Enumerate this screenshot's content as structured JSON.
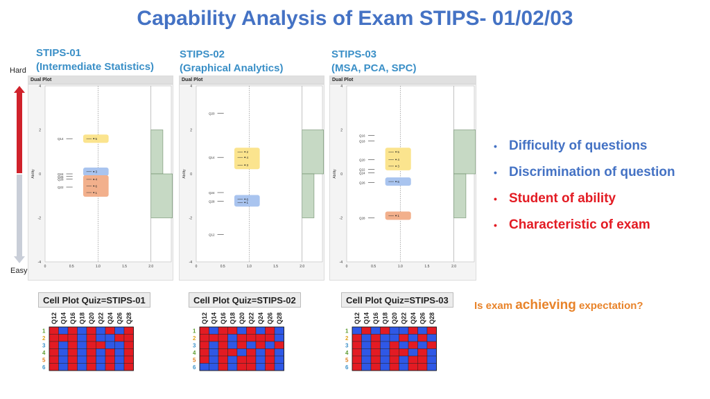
{
  "title": "Capability Analysis of Exam STIPS- 01/02/03",
  "side": {
    "hard": "Hard",
    "easy": "Easy"
  },
  "plots": [
    {
      "head1": "STIPS-01",
      "head2": "(Intermediate Statistics)",
      "panel": "Dual Plot",
      "yticks": [
        "4",
        "2",
        "0",
        "-2",
        "-4"
      ],
      "xticks": [
        "0",
        "0.5",
        "1.0",
        "1.5",
        "2.0"
      ],
      "ylabel": "Ability",
      "questions": [
        {
          "label": "Q14",
          "level": 1.6
        },
        {
          "label": "Q24",
          "level": 0.0
        },
        {
          "label": "Q26",
          "level": -0.12
        },
        {
          "label": "Q28",
          "level": -0.24
        },
        {
          "label": "Q22",
          "level": -0.6
        }
      ],
      "students": [
        {
          "label": "5",
          "level": 1.6,
          "group": "yellow"
        },
        {
          "label": "3",
          "level": 0.1,
          "group": "blue"
        },
        {
          "label": "4",
          "level": -0.25,
          "group": "orange"
        },
        {
          "label": "6",
          "level": -0.55,
          "group": "orange"
        },
        {
          "label": "1",
          "level": -0.85,
          "group": "orange"
        }
      ],
      "hist": [
        {
          "from": 0.0,
          "to": 2.0,
          "width": 0.25
        },
        {
          "from": -2.0,
          "to": 0.0,
          "width": 0.45
        }
      ]
    },
    {
      "head1": "STIPS-02",
      "head2": "(Graphical Analytics)",
      "panel": "Dual Plot",
      "yticks": [
        "4",
        "2",
        "0",
        "-2",
        "-4"
      ],
      "xticks": [
        "0",
        "0.5",
        "1.0",
        "1.5",
        "2.0"
      ],
      "ylabel": "Ability",
      "questions": [
        {
          "label": "Q20",
          "level": 2.75
        },
        {
          "label": "Q14",
          "level": 0.75
        },
        {
          "label": "Q24",
          "level": -0.85
        },
        {
          "label": "Q28",
          "level": -1.25
        },
        {
          "label": "Q12",
          "level": -2.75
        }
      ],
      "students": [
        {
          "label": "2",
          "level": 1.0,
          "group": "yellow"
        },
        {
          "label": "4",
          "level": 0.75,
          "group": "yellow"
        },
        {
          "label": "3",
          "level": 0.4,
          "group": "yellow"
        },
        {
          "label": "6",
          "level": -1.15,
          "group": "blue"
        },
        {
          "label": "1",
          "level": -1.3,
          "group": "blue"
        }
      ],
      "hist": [
        {
          "from": 0.0,
          "to": 2.0,
          "width": 0.45
        },
        {
          "from": -2.0,
          "to": 0.0,
          "width": 0.25
        }
      ]
    },
    {
      "head1": "STIPS-03",
      "head2": "(MSA, PCA, SPC)",
      "panel": "Dual Plot",
      "yticks": [
        "4",
        "2",
        "0",
        "-2",
        "-4"
      ],
      "xticks": [
        "0",
        "0.5",
        "1.0",
        "1.5",
        "2.0"
      ],
      "ylabel": "Ability",
      "questions": [
        {
          "label": "Q16",
          "level": 1.75
        },
        {
          "label": "Q18",
          "level": 1.5
        },
        {
          "label": "Q20",
          "level": 0.65
        },
        {
          "label": "Q22",
          "level": 0.2
        },
        {
          "label": "Q24",
          "level": 0.05
        },
        {
          "label": "Q26",
          "level": -0.4
        },
        {
          "label": "Q28",
          "level": -2.0
        }
      ],
      "students": [
        {
          "label": "5",
          "level": 1.0,
          "group": "yellow"
        },
        {
          "label": "4",
          "level": 0.65,
          "group": "yellow"
        },
        {
          "label": "3",
          "level": 0.35,
          "group": "yellow"
        },
        {
          "label": "6",
          "level": -0.35,
          "group": "blue"
        },
        {
          "label": "1",
          "level": -1.9,
          "group": "orange"
        }
      ],
      "hist": [
        {
          "from": 0.0,
          "to": 2.0,
          "width": 0.45
        },
        {
          "from": -2.0,
          "to": 0.0,
          "width": 0.25
        }
      ]
    }
  ],
  "bullets": [
    {
      "text": "Difficulty of questions",
      "color": "#4472c4"
    },
    {
      "text": "Discrimination of question",
      "color": "#4472c4"
    },
    {
      "text": "Student of ability",
      "color": "#e31b23"
    },
    {
      "text": "Characteristic of exam",
      "color": "#e31b23"
    }
  ],
  "question": {
    "pre": "Is exam ",
    "big": "achieving",
    "post": " expectation?"
  },
  "cellplots": [
    {
      "title": "Cell Plot Quiz=STIPS-01",
      "columns": [
        "Q12",
        "Q14",
        "Q16",
        "Q18",
        "Q20",
        "Q22",
        "Q24",
        "Q26",
        "Q28"
      ],
      "rows": [
        "1",
        "2",
        "3",
        "4",
        "5",
        "6"
      ],
      "cells": [
        [
          1,
          0,
          1,
          0,
          1,
          0,
          1,
          0,
          1
        ],
        [
          1,
          1,
          1,
          0,
          1,
          0,
          0,
          1,
          1
        ],
        [
          1,
          0,
          1,
          0,
          1,
          1,
          0,
          0,
          1
        ],
        [
          1,
          0,
          1,
          0,
          1,
          0,
          1,
          0,
          1
        ],
        [
          1,
          0,
          1,
          0,
          1,
          0,
          1,
          0,
          1
        ],
        [
          1,
          0,
          1,
          0,
          1,
          0,
          1,
          0,
          1
        ]
      ]
    },
    {
      "title": "Cell Plot Quiz=STIPS-02",
      "columns": [
        "Q12",
        "Q14",
        "Q16",
        "Q18",
        "Q20",
        "Q22",
        "Q24",
        "Q26",
        "Q28"
      ],
      "rows": [
        "1",
        "2",
        "3",
        "4",
        "5",
        "6"
      ],
      "cells": [
        [
          1,
          0,
          1,
          1,
          0,
          1,
          0,
          1,
          0
        ],
        [
          1,
          1,
          1,
          0,
          1,
          1,
          1,
          1,
          0
        ],
        [
          1,
          0,
          1,
          0,
          1,
          0,
          1,
          0,
          1
        ],
        [
          1,
          0,
          1,
          1,
          0,
          1,
          0,
          1,
          0
        ],
        [
          1,
          0,
          1,
          0,
          1,
          1,
          0,
          1,
          0
        ],
        [
          0,
          0,
          1,
          0,
          1,
          1,
          0,
          1,
          0
        ]
      ]
    },
    {
      "title": "Cell Plot Quiz=STIPS-03",
      "columns": [
        "Q12",
        "Q14",
        "Q16",
        "Q18",
        "Q20",
        "Q22",
        "Q24",
        "Q26",
        "Q28"
      ],
      "rows": [
        "1",
        "2",
        "3",
        "4",
        "5",
        "6"
      ],
      "cells": [
        [
          0,
          1,
          0,
          1,
          0,
          0,
          1,
          0,
          1
        ],
        [
          1,
          0,
          1,
          0,
          0,
          1,
          0,
          1,
          0
        ],
        [
          1,
          0,
          1,
          0,
          1,
          0,
          1,
          0,
          1
        ],
        [
          1,
          0,
          1,
          0,
          1,
          1,
          0,
          1,
          0
        ],
        [
          1,
          0,
          1,
          0,
          1,
          0,
          1,
          1,
          0
        ],
        [
          1,
          0,
          1,
          0,
          1,
          0,
          1,
          1,
          0
        ]
      ]
    }
  ],
  "colors": {
    "red": "#e31b23",
    "blue": "#2f58e6",
    "yellow": "#fbe48e",
    "blue_box": "#a9c4ef",
    "orange": "#f2b08c",
    "hist": "#c6d9c4",
    "row": [
      "#5b9b2f",
      "#e0a21a",
      "#3a8fc7",
      "#5b9b2f",
      "#e07b1a",
      "#3a8fc7"
    ]
  }
}
